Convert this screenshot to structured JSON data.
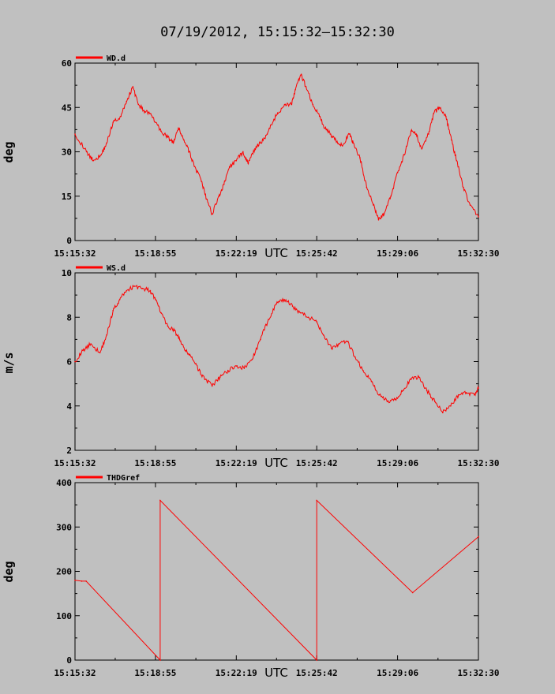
{
  "figure_title": "07/19/2012, 15:15:32–15:32:30",
  "line_color": "#ff0000",
  "background_color": "#c0c0c0",
  "chart_data": [
    {
      "type": "line",
      "title": "",
      "ylabel": "deg",
      "xlabel": "UTC",
      "x_ticks": [
        "15:15:32",
        "15:18:55",
        "15:22:19",
        "15:25:42",
        "15:29:06",
        "15:32:30"
      ],
      "y_ticks": [
        "0",
        "15",
        "30",
        "45",
        "60"
      ],
      "xlim": [
        "15:15:32",
        "15:32:30"
      ],
      "ylim": [
        0,
        60
      ],
      "legend": "top-left",
      "series": [
        {
          "name": "WD.d",
          "x": [
            "15:15:32",
            "15:16:01",
            "15:16:18",
            "15:16:38",
            "15:16:52",
            "15:17:08",
            "15:17:28",
            "15:17:42",
            "15:17:58",
            "15:18:12",
            "15:18:26",
            "15:18:40",
            "15:18:55",
            "15:19:09",
            "15:19:26",
            "15:19:40",
            "15:19:53",
            "15:20:07",
            "15:20:20",
            "15:20:34",
            "15:20:51",
            "15:21:04",
            "15:21:18",
            "15:21:35",
            "15:21:48",
            "15:22:02",
            "15:22:19",
            "15:22:36",
            "15:22:49",
            "15:23:06",
            "15:23:20",
            "15:23:37",
            "15:23:54",
            "15:24:04",
            "15:24:21",
            "15:24:38",
            "15:24:48",
            "15:25:02",
            "15:25:15",
            "15:25:32",
            "15:25:49",
            "15:26:03",
            "15:26:16",
            "15:26:30",
            "15:26:47",
            "15:27:04",
            "15:27:14",
            "15:27:31",
            "15:27:48",
            "15:28:05",
            "15:28:18",
            "15:28:32",
            "15:28:49",
            "15:29:06",
            "15:29:23",
            "15:29:40",
            "15:29:53",
            "15:30:07",
            "15:30:24",
            "15:30:37",
            "15:30:51",
            "15:31:08",
            "15:31:22",
            "15:31:35",
            "15:31:52",
            "15:32:09",
            "15:32:30"
          ],
          "values": [
            36,
            30,
            27,
            29,
            33,
            40,
            42,
            47,
            52,
            46,
            44,
            43,
            40,
            37,
            35,
            33,
            38,
            34,
            30,
            25,
            20,
            14,
            9,
            15,
            19,
            25,
            27,
            30,
            26,
            31,
            33,
            36,
            41,
            43,
            46,
            46,
            51,
            56,
            52,
            46,
            42,
            38,
            36,
            34,
            32,
            36,
            33,
            28,
            18,
            12,
            7,
            9,
            15,
            23,
            29,
            37,
            36,
            31,
            36,
            43,
            45,
            42,
            34,
            27,
            18,
            12,
            8
          ]
        }
      ]
    },
    {
      "type": "line",
      "title": "",
      "ylabel": "m/s",
      "xlabel": "UTC",
      "x_ticks": [
        "15:15:32",
        "15:18:55",
        "15:22:19",
        "15:25:42",
        "15:29:06",
        "15:32:30"
      ],
      "y_ticks": [
        "2",
        "4",
        "6",
        "8",
        "10"
      ],
      "xlim": [
        "15:15:32",
        "15:32:30"
      ],
      "ylim": [
        2,
        10
      ],
      "legend": "top-left",
      "series": [
        {
          "name": "WS.d",
          "x": [
            "15:15:32",
            "15:15:52",
            "15:16:12",
            "15:16:35",
            "15:16:52",
            "15:17:08",
            "15:17:25",
            "15:17:42",
            "15:18:02",
            "15:18:22",
            "15:18:42",
            "15:18:55",
            "15:19:09",
            "15:19:26",
            "15:19:43",
            "15:19:56",
            "15:20:10",
            "15:20:27",
            "15:20:44",
            "15:21:01",
            "15:21:18",
            "15:21:38",
            "15:21:58",
            "15:22:19",
            "15:22:39",
            "15:22:59",
            "15:23:20",
            "15:23:40",
            "15:24:00",
            "15:24:20",
            "15:24:41",
            "15:25:01",
            "15:25:21",
            "15:25:42",
            "15:25:59",
            "15:26:19",
            "15:26:39",
            "15:26:59",
            "15:27:19",
            "15:27:39",
            "15:28:00",
            "15:28:20",
            "15:28:40",
            "15:29:00",
            "15:29:20",
            "15:29:40",
            "15:30:00",
            "15:30:20",
            "15:30:40",
            "15:31:00",
            "15:31:20",
            "15:31:40",
            "15:32:00",
            "15:32:20",
            "15:32:30"
          ],
          "values": [
            6.0,
            6.5,
            6.8,
            6.4,
            7.2,
            8.3,
            8.8,
            9.2,
            9.4,
            9.3,
            9.2,
            8.8,
            8.2,
            7.6,
            7.4,
            7.0,
            6.5,
            6.2,
            5.6,
            5.2,
            4.9,
            5.3,
            5.6,
            5.8,
            5.7,
            6.1,
            7.0,
            7.9,
            8.6,
            8.8,
            8.5,
            8.2,
            8.0,
            7.8,
            7.2,
            6.6,
            6.8,
            6.9,
            6.2,
            5.6,
            5.1,
            4.5,
            4.2,
            4.3,
            4.7,
            5.2,
            5.3,
            4.7,
            4.2,
            3.7,
            4.0,
            4.5,
            4.6,
            4.5,
            4.8
          ]
        }
      ]
    },
    {
      "type": "line",
      "title": "",
      "ylabel": "deg",
      "xlabel": "UTC",
      "x_ticks": [
        "15:15:32",
        "15:18:55",
        "15:22:19",
        "15:25:42",
        "15:29:06",
        "15:32:30"
      ],
      "y_ticks": [
        "0",
        "100",
        "200",
        "300",
        "400"
      ],
      "xlim": [
        "15:15:32",
        "15:32:30"
      ],
      "ylim": [
        0,
        400
      ],
      "legend": "top-left",
      "series": [
        {
          "name": "THDGref",
          "x": [
            "15:15:32",
            "15:15:49",
            "15:16:00",
            "15:19:07",
            "15:19:07",
            "15:25:42",
            "15:25:42",
            "15:29:44",
            "15:32:30"
          ],
          "values": [
            180,
            178,
            178,
            0,
            360,
            0,
            360,
            152,
            278
          ]
        }
      ]
    }
  ]
}
